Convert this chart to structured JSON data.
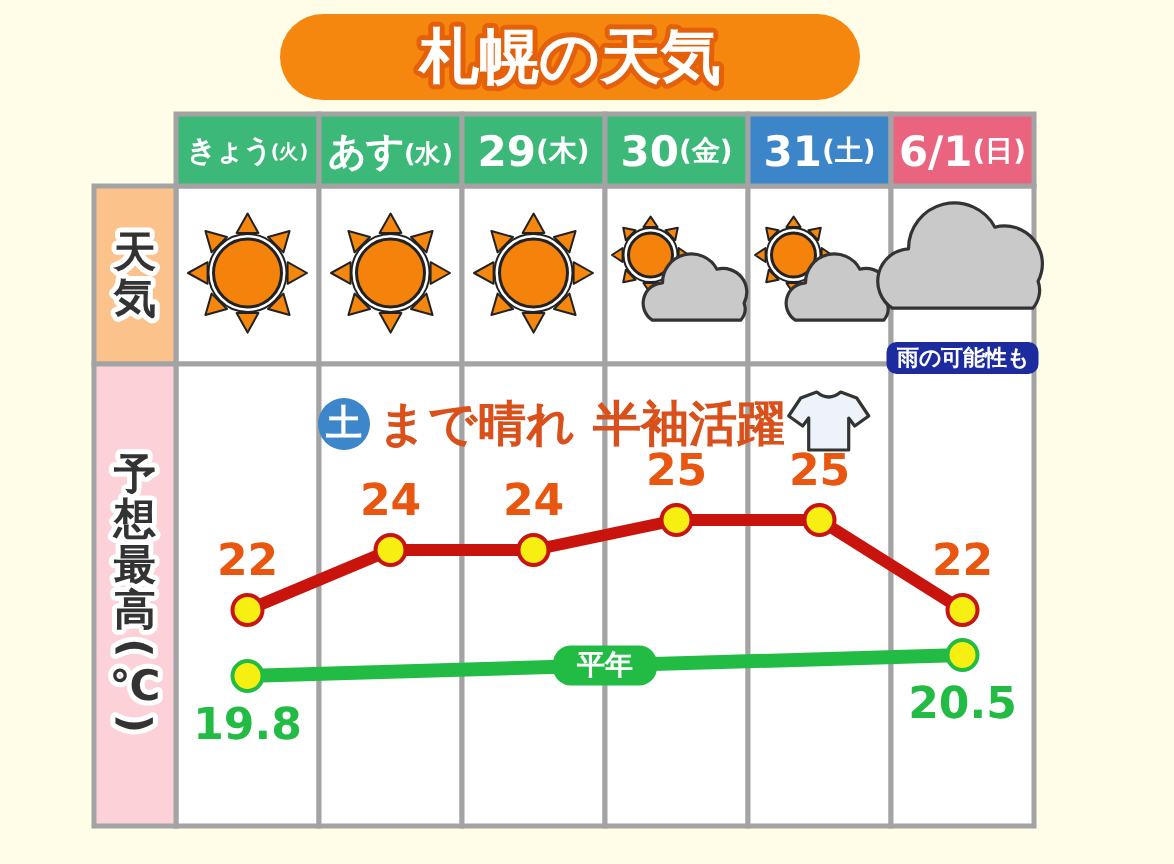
{
  "chart_data": {
    "type": "line",
    "title": "札幌の天気",
    "categories": [
      "きょう(火)",
      "あす(水)",
      "29(木)",
      "30(金)",
      "31(土)",
      "6/1(日)"
    ],
    "ylabel": "予想最高(℃)",
    "series": [
      {
        "color": "#c8140c",
        "values": [
          22,
          24,
          24,
          25,
          25,
          22
        ]
      },
      {
        "name": "平年",
        "color": "#22bb44",
        "x": [
          "きょう(火)",
          "6/1(日)"
        ],
        "values": [
          19.8,
          20.5
        ]
      }
    ],
    "data_labels": true,
    "marker": "circle",
    "line_style": "solid",
    "annotations": [
      "天気",
      "土まで晴れ 半袖活躍",
      "雨の可能性も"
    ]
  }
}
